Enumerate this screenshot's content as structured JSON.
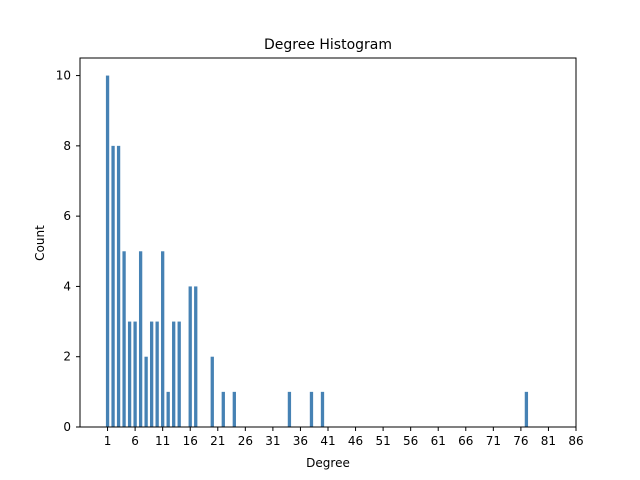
{
  "chart_data": {
    "type": "bar",
    "title": "Degree Histogram",
    "xlabel": "Degree",
    "ylabel": "Count",
    "x": [
      1,
      2,
      3,
      4,
      5,
      6,
      7,
      8,
      9,
      10,
      11,
      12,
      13,
      14,
      16,
      17,
      20,
      22,
      24,
      34,
      38,
      40,
      77
    ],
    "values": [
      10,
      8,
      8,
      5,
      3,
      3,
      5,
      2,
      3,
      3,
      5,
      1,
      3,
      3,
      4,
      4,
      2,
      1,
      1,
      1,
      1,
      1,
      1
    ],
    "xlim": [
      -4,
      86
    ],
    "ylim": [
      0,
      10.5
    ],
    "x_ticks": [
      1,
      6,
      11,
      16,
      21,
      26,
      31,
      36,
      41,
      46,
      51,
      56,
      61,
      66,
      71,
      76,
      81,
      86
    ],
    "y_ticks": [
      0,
      2,
      4,
      6,
      8,
      10
    ],
    "bar_color": "#4682b4",
    "grid": false
  }
}
